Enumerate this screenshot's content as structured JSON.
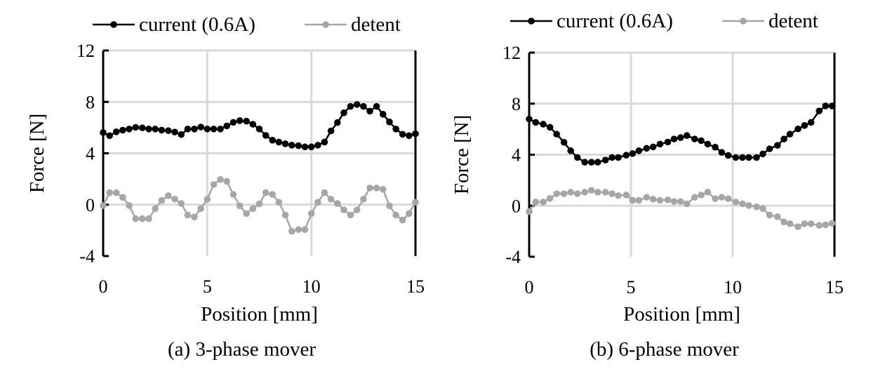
{
  "chart_data": [
    {
      "type": "line",
      "caption": "(a) 3-phase mover",
      "xlabel": "Position  [mm]",
      "ylabel": "Force [N]",
      "xlim": [
        0,
        15
      ],
      "ylim": [
        -4,
        12
      ],
      "xticks": [
        0,
        5,
        10,
        15
      ],
      "yticks": [
        -4,
        0,
        4,
        8,
        12
      ],
      "grid": true,
      "legend": "top",
      "series": [
        {
          "name": "current (0.6A)",
          "color": "#000000",
          "x": [
            0,
            0.31,
            0.63,
            0.94,
            1.25,
            1.56,
            1.88,
            2.19,
            2.5,
            2.81,
            3.13,
            3.44,
            3.75,
            4.06,
            4.38,
            4.69,
            5,
            5.31,
            5.63,
            5.94,
            6.25,
            6.56,
            6.88,
            7.19,
            7.5,
            7.81,
            8.13,
            8.44,
            8.75,
            9.06,
            9.38,
            9.69,
            10,
            10.31,
            10.63,
            10.94,
            11.25,
            11.56,
            11.88,
            12.19,
            12.5,
            12.81,
            13.13,
            13.44,
            13.75,
            14.06,
            14.38,
            14.69,
            15
          ],
          "y": [
            5.61,
            5.37,
            5.67,
            5.8,
            5.89,
            6.02,
            5.98,
            5.89,
            5.89,
            5.8,
            5.76,
            5.65,
            5.46,
            5.89,
            5.89,
            6.04,
            5.89,
            5.89,
            5.89,
            6.13,
            6.41,
            6.54,
            6.5,
            6.26,
            5.89,
            5.39,
            5.02,
            4.87,
            4.74,
            4.63,
            4.59,
            4.5,
            4.5,
            4.63,
            4.87,
            5.74,
            6.39,
            7.15,
            7.65,
            7.8,
            7.65,
            7.28,
            7.65,
            7.04,
            6.44,
            5.89,
            5.48,
            5.37,
            5.52
          ]
        },
        {
          "name": "detent",
          "color": "#a6a6a6",
          "x": [
            0,
            0.31,
            0.63,
            0.94,
            1.25,
            1.56,
            1.88,
            2.19,
            2.5,
            2.81,
            3.13,
            3.44,
            3.75,
            4.06,
            4.38,
            4.69,
            5,
            5.31,
            5.63,
            5.94,
            6.25,
            6.56,
            6.88,
            7.19,
            7.5,
            7.81,
            8.13,
            8.44,
            8.75,
            9.06,
            9.38,
            9.69,
            10,
            10.31,
            10.63,
            10.94,
            11.25,
            11.56,
            11.88,
            12.19,
            12.5,
            12.81,
            13.13,
            13.44,
            13.75,
            14.06,
            14.38,
            14.69,
            15
          ],
          "y": [
            -0.07,
            0.93,
            0.93,
            0.57,
            -0.07,
            -1.09,
            -1.09,
            -1.09,
            -0.31,
            0.33,
            0.7,
            0.43,
            0.09,
            -0.81,
            -0.96,
            -0.31,
            0.43,
            1.57,
            1.96,
            1.81,
            0.8,
            -0.09,
            -0.69,
            -0.31,
            0.06,
            0.94,
            0.8,
            0.19,
            -0.81,
            -2.07,
            -1.94,
            -1.94,
            -0.69,
            0.19,
            0.94,
            0.43,
            0.09,
            -0.41,
            -0.81,
            -0.41,
            0.43,
            1.3,
            1.3,
            1.2,
            -0.09,
            -0.81,
            -1.2,
            -0.69,
            0.19
          ]
        }
      ]
    },
    {
      "type": "line",
      "caption": "(b) 6-phase mover",
      "xlabel": "Position  [mm]",
      "ylabel": "Force [N]",
      "xlim": [
        0,
        15
      ],
      "ylim": [
        -4,
        12
      ],
      "xticks": [
        0,
        5,
        10,
        15
      ],
      "yticks": [
        -4,
        0,
        4,
        8,
        12
      ],
      "grid": true,
      "legend": "top",
      "series": [
        {
          "name": "current (0.6A)",
          "color": "#000000",
          "x": [
            0,
            0.32,
            0.69,
            1.02,
            1.35,
            1.71,
            2.04,
            2.37,
            2.73,
            3.06,
            3.37,
            3.75,
            4.07,
            4.38,
            4.77,
            5.08,
            5.39,
            5.77,
            6.09,
            6.43,
            6.81,
            7.12,
            7.44,
            7.75,
            8.13,
            8.45,
            8.77,
            9.14,
            9.46,
            9.78,
            10.15,
            10.48,
            10.79,
            11.17,
            11.48,
            11.81,
            12.2,
            12.52,
            12.81,
            13.21,
            13.53,
            13.85,
            14.25,
            14.56,
            14.88
          ],
          "y": [
            6.79,
            6.53,
            6.39,
            6.15,
            5.61,
            4.97,
            4.31,
            3.78,
            3.41,
            3.41,
            3.41,
            3.58,
            3.78,
            3.78,
            3.96,
            4.09,
            4.31,
            4.5,
            4.61,
            4.83,
            4.99,
            5.23,
            5.34,
            5.5,
            5.23,
            5.1,
            4.83,
            4.59,
            4.18,
            3.94,
            3.78,
            3.78,
            3.78,
            3.78,
            4.06,
            4.46,
            4.73,
            5.23,
            5.61,
            6.02,
            6.29,
            6.53,
            7.43,
            7.82,
            7.82
          ]
        },
        {
          "name": "detent",
          "color": "#a6a6a6",
          "x": [
            0,
            0.32,
            0.69,
            1.02,
            1.35,
            1.71,
            2.04,
            2.37,
            2.73,
            3.06,
            3.37,
            3.75,
            4.07,
            4.38,
            4.77,
            5.08,
            5.39,
            5.77,
            6.09,
            6.43,
            6.81,
            7.12,
            7.44,
            7.75,
            8.13,
            8.45,
            8.77,
            9.14,
            9.46,
            9.78,
            10.15,
            10.48,
            10.79,
            11.17,
            11.48,
            11.81,
            12.2,
            12.52,
            12.81,
            13.21,
            13.53,
            13.85,
            14.25,
            14.56,
            14.88
          ],
          "y": [
            -0.46,
            0.29,
            0.29,
            0.57,
            0.94,
            0.94,
            1.06,
            0.94,
            1.06,
            1.21,
            1.06,
            1.06,
            0.94,
            0.79,
            0.84,
            0.42,
            0.42,
            0.66,
            0.51,
            0.42,
            0.46,
            0.33,
            0.33,
            0.15,
            0.66,
            0.84,
            1.06,
            0.55,
            0.66,
            0.55,
            0.29,
            0.15,
            0.02,
            -0.09,
            -0.22,
            -0.73,
            -0.86,
            -1.27,
            -1.41,
            -1.65,
            -1.41,
            -1.41,
            -1.54,
            -1.5,
            -1.38
          ]
        }
      ]
    }
  ]
}
